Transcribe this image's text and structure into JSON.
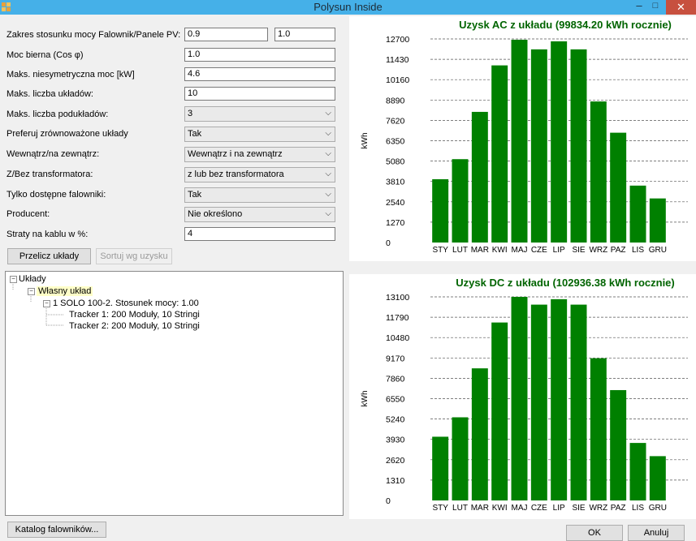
{
  "window": {
    "title": "Polysun Inside",
    "minimize": "–",
    "maximize": "□",
    "close": "✕"
  },
  "form": {
    "ratio_label": "Zakres stosunku mocy Falownik/Panele PV:",
    "ratio_min": "0.9",
    "ratio_max": "1.0",
    "cosphi_label": "Moc bierna (Cos φ)",
    "cosphi_value": "1.0",
    "asym_label": "Maks. niesymetryczna moc [kW]",
    "asym_value": "4.6",
    "max_systems_label": "Maks. liczba układów:",
    "max_systems_value": "10",
    "max_subsystems_label": "Maks. liczba podukładów:",
    "max_subsystems_value": "3",
    "balanced_label": "Preferuj zrównoważone układy",
    "balanced_value": "Tak",
    "inout_label": "Wewnątrz/na zewnątrz:",
    "inout_value": "Wewnątrz i na zewnątrz",
    "transformer_label": "Z/Bez transformatora:",
    "transformer_value": "z lub bez transformatora",
    "available_label": "Tylko dostępne falowniki:",
    "available_value": "Tak",
    "producer_label": "Producent:",
    "producer_value": "Nie określono",
    "cable_label": "Straty na kablu w %:",
    "cable_value": "4"
  },
  "buttons": {
    "recalc": "Przelicz układy",
    "sort": "Sortuj wg uzysku",
    "catalog": "Katalog falowników...",
    "ok": "OK",
    "cancel": "Anuluj"
  },
  "tree": {
    "root": "Układy",
    "own": "Własny układ",
    "system": "1 SOLO 100-2. Stosunek mocy: 1.00",
    "tracker1": "Tracker 1: 200 Moduły, 10 Stringi",
    "tracker2": "Tracker 2: 200 Moduły, 10 Stringi"
  },
  "colors": {
    "bar": "#008000",
    "title": "#006400"
  },
  "chart_data": [
    {
      "type": "bar",
      "title": "Uzysk AC z układu (99834.20 kWh rocznie)",
      "ylabel": "kWh",
      "ylim": [
        0,
        12700
      ],
      "yticks": [
        0,
        1270,
        2540,
        3810,
        5080,
        6350,
        7620,
        8890,
        10160,
        11430,
        12700
      ],
      "categories": [
        "STY",
        "LUT",
        "MAR",
        "KWI",
        "MAJ",
        "CZE",
        "LIP",
        "SIE",
        "WRZ",
        "PAZ",
        "LIS",
        "GRU"
      ],
      "values": [
        3950,
        5200,
        8150,
        11050,
        12650,
        12050,
        12550,
        12050,
        8800,
        6850,
        3550,
        2750
      ]
    },
    {
      "type": "bar",
      "title": "Uzysk DC z układu (102936.38 kWh rocznie)",
      "ylabel": "kWh",
      "ylim": [
        0,
        13100
      ],
      "yticks": [
        0,
        1310,
        2620,
        3930,
        5240,
        6550,
        7860,
        9170,
        10480,
        11790,
        13100
      ],
      "categories": [
        "STY",
        "LUT",
        "MAR",
        "KWI",
        "MAJ",
        "CZE",
        "LIP",
        "SIE",
        "WRZ",
        "PAZ",
        "LIS",
        "GRU"
      ],
      "values": [
        4100,
        5350,
        8500,
        11450,
        13100,
        12600,
        12950,
        12600,
        9150,
        7100,
        3700,
        2850
      ]
    }
  ]
}
